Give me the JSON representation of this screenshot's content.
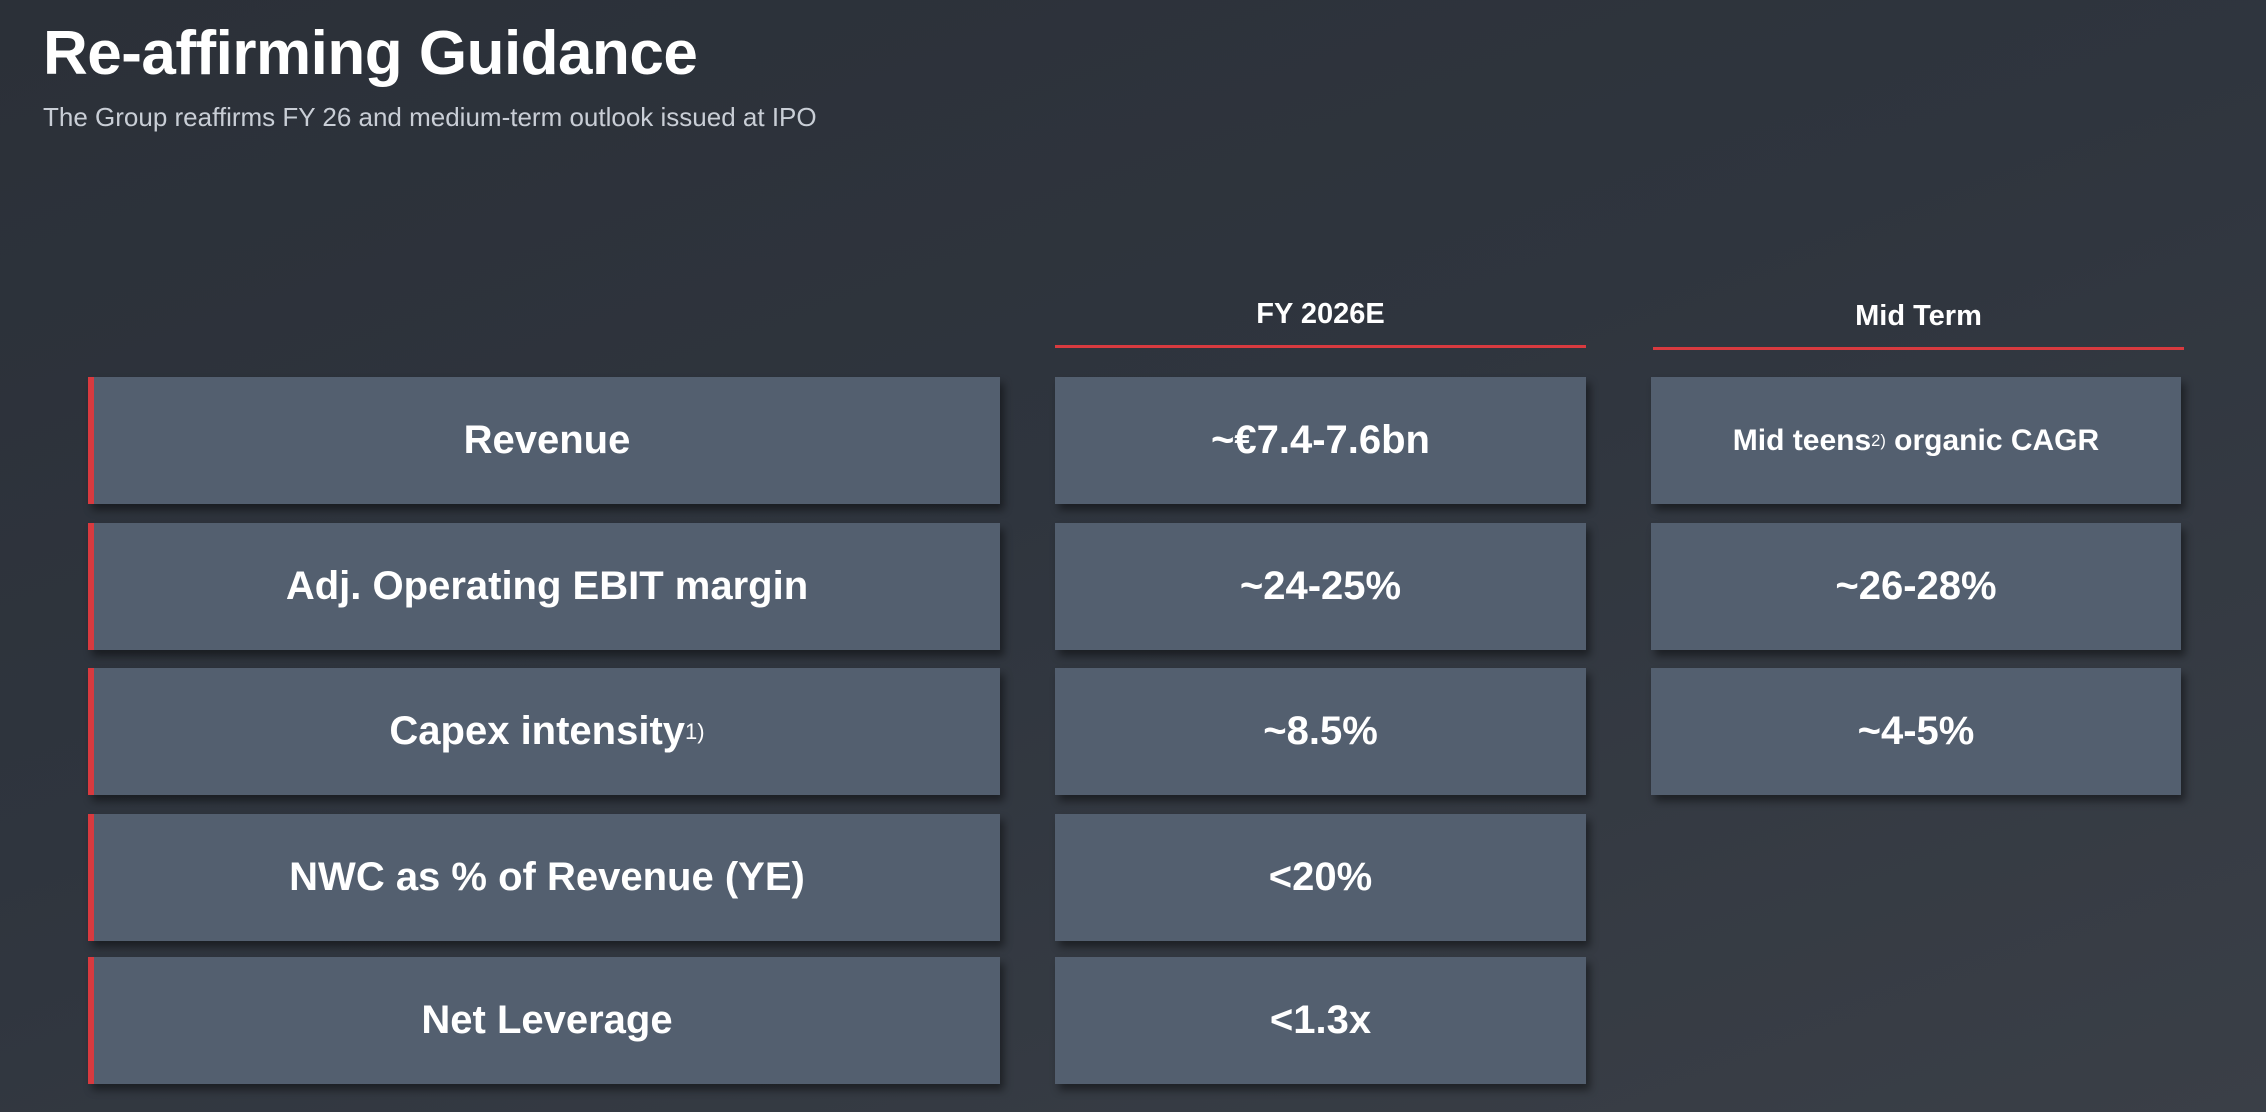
{
  "slide": {
    "title": "Re-affirming Guidance",
    "subtitle": "The Group reaffirms FY 26 and medium-term outlook issued at IPO"
  },
  "columns": {
    "fy": "FY 2026E",
    "mid_term": "Mid Term"
  },
  "rows": [
    {
      "label": "Revenue",
      "label_sup": "",
      "fy": "~€7.4-7.6bn",
      "mid_term": "Mid teens",
      "mid_term_sup": "2)",
      "mid_term_suffix": " organic CAGR"
    },
    {
      "label": "Adj. Operating EBIT margin",
      "label_sup": "",
      "fy": "~24-25%",
      "mid_term": "~26-28%"
    },
    {
      "label": "Capex intensity",
      "label_sup": "1)",
      "fy": "~8.5%",
      "mid_term": "~4-5%"
    },
    {
      "label": "NWC as % of Revenue (YE)",
      "label_sup": "",
      "fy": "<20%"
    },
    {
      "label": "Net Leverage",
      "label_sup": "",
      "fy": "<1.3x"
    }
  ],
  "colors": {
    "accent": "#d83a3f",
    "box": "#535f6f",
    "background": "#2f353e"
  }
}
